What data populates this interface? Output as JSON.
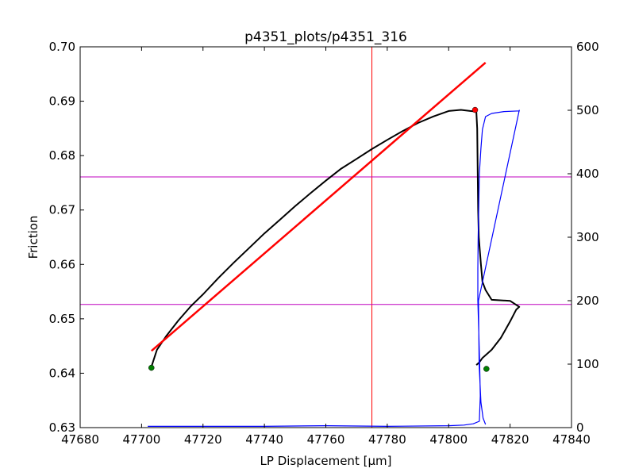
{
  "chart_data": {
    "type": "line",
    "title": "p4351_plots/p4351_316",
    "xlabel": "LP Displacement [μm]",
    "ylabel": "Friction",
    "y2label": "",
    "xlim": [
      47680,
      47840
    ],
    "ylim": [
      0.63,
      0.7
    ],
    "y2lim": [
      0,
      600
    ],
    "x_ticks": [
      "47680",
      "47700",
      "47720",
      "47740",
      "47760",
      "47780",
      "47800",
      "47820",
      "47840"
    ],
    "y_ticks": [
      "0.63",
      "0.64",
      "0.65",
      "0.66",
      "0.67",
      "0.68",
      "0.69",
      "0.70"
    ],
    "y2_ticks": [
      "0",
      "100",
      "200",
      "300",
      "400",
      "500",
      "600"
    ],
    "colors": {
      "friction": "#000000",
      "fit": "#ff0000",
      "right_axis_series": "#0000ff",
      "vline": "#ff0000",
      "hlines": "#bf00bf",
      "start_marker": "#007f00",
      "peak_marker": "#ff0000"
    },
    "series": [
      {
        "axis": "left",
        "x": [
          47703.2,
          47705,
          47708,
          47712,
          47716,
          47720,
          47725,
          47730,
          47735,
          47740,
          47745,
          47750,
          47755,
          47760,
          47765,
          47770,
          47775,
          47780,
          47785,
          47790,
          47795,
          47800,
          47804,
          47807,
          47809,
          47809.3,
          47809.4,
          47809.5,
          47809.6,
          47809.8,
          47810.5,
          47811,
          47812,
          47814,
          47820,
          47823,
          47822,
          47820,
          47817,
          47814,
          47811,
          47810,
          47809
        ],
        "y": [
          0.6412,
          0.6443,
          0.6468,
          0.6497,
          0.6523,
          0.6545,
          0.6575,
          0.6603,
          0.663,
          0.6657,
          0.6682,
          0.6707,
          0.6731,
          0.6754,
          0.6776,
          0.6794,
          0.6812,
          0.6829,
          0.6845,
          0.686,
          0.6872,
          0.6882,
          0.6884,
          0.6882,
          0.6881,
          0.685,
          0.68,
          0.675,
          0.67,
          0.665,
          0.66,
          0.6568,
          0.6553,
          0.6535,
          0.6533,
          0.6522,
          0.6517,
          0.6495,
          0.6465,
          0.6443,
          0.6428,
          0.642,
          0.6415
        ]
      },
      {
        "axis": "left",
        "x": [
          47703.2,
          47812
        ],
        "y": [
          0.6441,
          0.6971
        ]
      },
      {
        "axis": "right",
        "x": [
          47702,
          47720,
          47740,
          47760,
          47780,
          47800,
          47805,
          47808,
          47810,
          47810.3,
          47810.1,
          47809.8,
          47809.5,
          47809.5,
          47809.6,
          47809.8,
          47810,
          47810.5,
          47811,
          47812,
          47814,
          47818,
          47823,
          47823,
          47809.7,
          47809.9,
          47810.5,
          47811.2,
          47812
        ],
        "y": [
          2,
          2,
          2,
          3,
          2,
          3,
          4,
          6,
          10,
          50,
          100,
          150,
          200,
          250,
          300,
          350,
          400,
          440,
          470,
          490,
          495,
          498,
          499,
          500,
          200,
          100,
          40,
          15,
          5
        ]
      }
    ],
    "reference_lines": {
      "vertical_x": 47775,
      "horizontal_y2": [
        395,
        194
      ]
    },
    "markers": [
      {
        "axis": "left",
        "x": 47703.2,
        "y": 0.641
      },
      {
        "axis": "left",
        "x": 47812.3,
        "y": 0.6408
      },
      {
        "axis": "left",
        "x": 47808.6,
        "y": 0.6884
      }
    ],
    "grid": false,
    "legend": false
  }
}
